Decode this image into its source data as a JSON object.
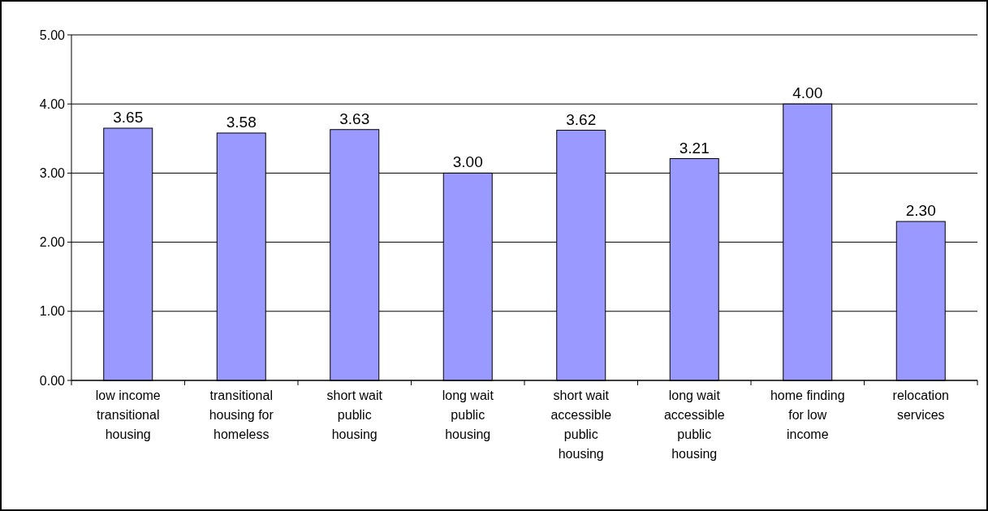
{
  "chart_data": {
    "type": "bar",
    "categories": [
      "low income transitional housing",
      "transitional housing for homeless",
      "short wait public housing",
      "long wait public housing",
      "short wait accessible public housing",
      "long wait accessible public housing",
      "home finding for low income",
      "relocation services"
    ],
    "values": [
      3.65,
      3.58,
      3.63,
      3.0,
      3.62,
      3.21,
      4.0,
      2.3
    ],
    "value_labels": [
      "3.65",
      "3.58",
      "3.63",
      "3.00",
      "3.62",
      "3.21",
      "4.00",
      "2.30"
    ],
    "color": "#9999ff",
    "ylim": [
      0,
      5
    ],
    "yticks": [
      {
        "value": 0,
        "label": "0.00"
      },
      {
        "value": 1,
        "label": "1.00"
      },
      {
        "value": 2,
        "label": "2.00"
      },
      {
        "value": 3,
        "label": "3.00"
      },
      {
        "value": 4,
        "label": "4.00"
      },
      {
        "value": 5,
        "label": "5.00"
      }
    ],
    "grid": "y"
  }
}
